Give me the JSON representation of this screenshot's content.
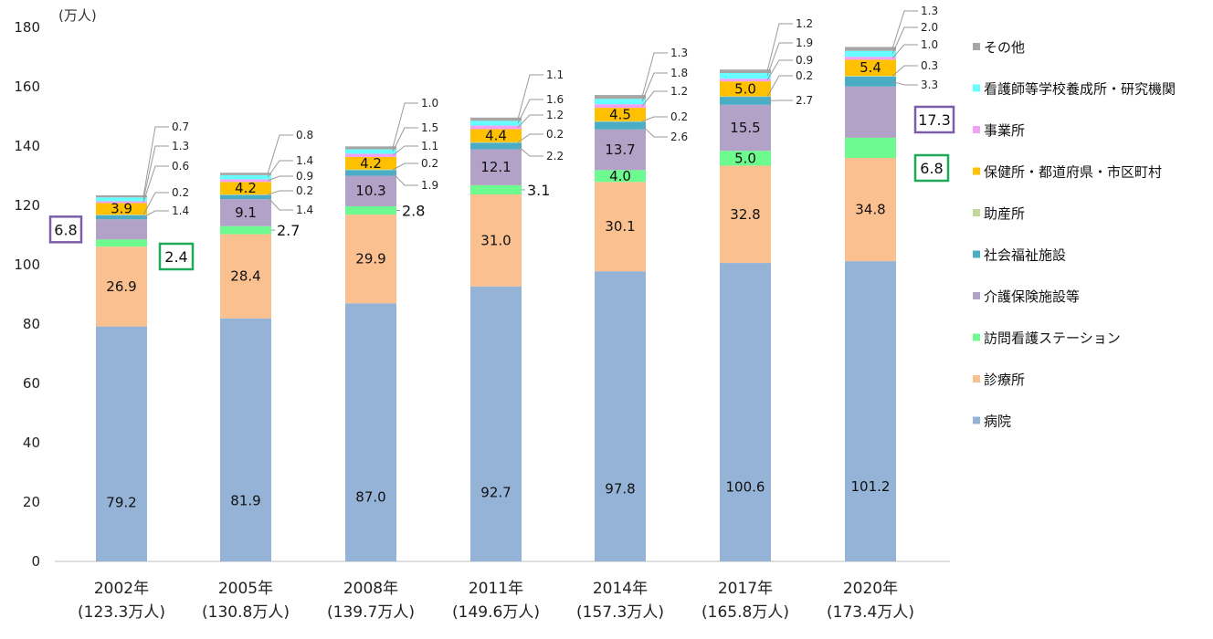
{
  "chart_data": {
    "type": "bar",
    "stacked": true,
    "unit_label": "(万人)",
    "ylim": [
      0,
      180
    ],
    "yticks": [
      0,
      20,
      40,
      60,
      80,
      100,
      120,
      140,
      160,
      180
    ],
    "categories": [
      "2002年",
      "2005年",
      "2008年",
      "2011年",
      "2014年",
      "2017年",
      "2020年"
    ],
    "category_totals": [
      "(123.3万人)",
      "(130.8万人)",
      "(139.7万人)",
      "(149.6万人)",
      "(157.3万人)",
      "(165.8万人)",
      "(173.4万人)"
    ],
    "series": [
      {
        "name": "病院",
        "color": "#95b3d7",
        "values": [
          79.2,
          81.9,
          87.0,
          92.7,
          97.8,
          100.6,
          101.2
        ],
        "labels": [
          "79.2",
          "81.9",
          "87.0",
          "92.7",
          "97.8",
          "100.6",
          "101.2"
        ]
      },
      {
        "name": "診療所",
        "color": "#fac090",
        "values": [
          26.9,
          28.4,
          29.9,
          31.0,
          30.1,
          32.8,
          34.8
        ],
        "labels": [
          "26.9",
          "28.4",
          "29.9",
          "31.0",
          "30.1",
          "32.8",
          "34.8"
        ]
      },
      {
        "name": "訪問看護ステーション",
        "color": "#6dfb8f",
        "values": [
          2.4,
          2.7,
          2.8,
          3.1,
          4.0,
          5.0,
          6.8
        ],
        "labels": [
          "2.4",
          "2.7",
          "2.8",
          "3.1",
          "4.0",
          "5.0",
          "6.8"
        ]
      },
      {
        "name": "介護保険施設等",
        "color": "#b3a2c7",
        "values": [
          6.8,
          9.1,
          10.3,
          12.1,
          13.7,
          15.5,
          17.3
        ],
        "labels": [
          "6.8",
          "9.1",
          "10.3",
          "12.1",
          "13.7",
          "15.5",
          "17.3"
        ]
      },
      {
        "name": "社会福祉施設",
        "color": "#4bacc6",
        "values": [
          1.4,
          1.4,
          1.9,
          2.2,
          2.6,
          2.7,
          3.3
        ],
        "labels": [
          "1.4",
          "1.4",
          "1.9",
          "2.2",
          "2.6",
          "2.7",
          "3.3"
        ]
      },
      {
        "name": "助産所",
        "color": "#c4d79b",
        "values": [
          0.2,
          0.2,
          0.2,
          0.2,
          0.2,
          0.2,
          0.3
        ],
        "labels": [
          "0.2",
          "0.2",
          "0.2",
          "0.2",
          "0.2",
          "0.2",
          "0.3"
        ]
      },
      {
        "name": "保健所・都道府県・市区町村",
        "color": "#ffc000",
        "values": [
          3.9,
          4.2,
          4.2,
          4.4,
          4.5,
          5.0,
          5.4
        ],
        "labels": [
          "3.9",
          "4.2",
          "4.2",
          "4.4",
          "4.5",
          "5.0",
          "5.4"
        ]
      },
      {
        "name": "事業所",
        "color": "#f1a2f7",
        "values": [
          0.6,
          0.9,
          1.1,
          1.2,
          1.2,
          0.9,
          1.0
        ],
        "labels": [
          "0.6",
          "0.9",
          "1.1",
          "1.2",
          "1.2",
          "0.9",
          "1.0"
        ]
      },
      {
        "name": "看護師等学校養成所・研究機関",
        "color": "#66ffff",
        "values": [
          1.3,
          1.4,
          1.5,
          1.6,
          1.8,
          1.9,
          2.0
        ],
        "labels": [
          "1.3",
          "1.4",
          "1.5",
          "1.6",
          "1.8",
          "1.9",
          "2.0"
        ]
      },
      {
        "name": "その他",
        "color": "#a6a6a6",
        "values": [
          0.7,
          0.8,
          1.0,
          1.1,
          1.3,
          1.2,
          1.3
        ],
        "labels": [
          "0.7",
          "0.8",
          "1.0",
          "1.1",
          "1.3",
          "1.2",
          "1.3"
        ]
      }
    ],
    "legend": {
      "placement": "right",
      "order": [
        "その他",
        "看護師等学校養成所・研究機関",
        "事業所",
        "保健所・都道府県・市区町村",
        "助産所",
        "社会福祉施設",
        "介護保険施設等",
        "訪問看護ステーション",
        "診療所",
        "病院"
      ]
    },
    "highlights": [
      {
        "category": "2002年",
        "series": "介護保険施設等",
        "value": "6.8",
        "color": "#7a5ea8"
      },
      {
        "category": "2002年",
        "series": "訪問看護ステーション",
        "value": "2.4",
        "color": "#1faa5a"
      },
      {
        "category": "2020年",
        "series": "介護保険施設等",
        "value": "17.3",
        "color": "#7a5ea8"
      },
      {
        "category": "2020年",
        "series": "訪問看護ステーション",
        "value": "6.8",
        "color": "#1faa5a"
      }
    ]
  }
}
